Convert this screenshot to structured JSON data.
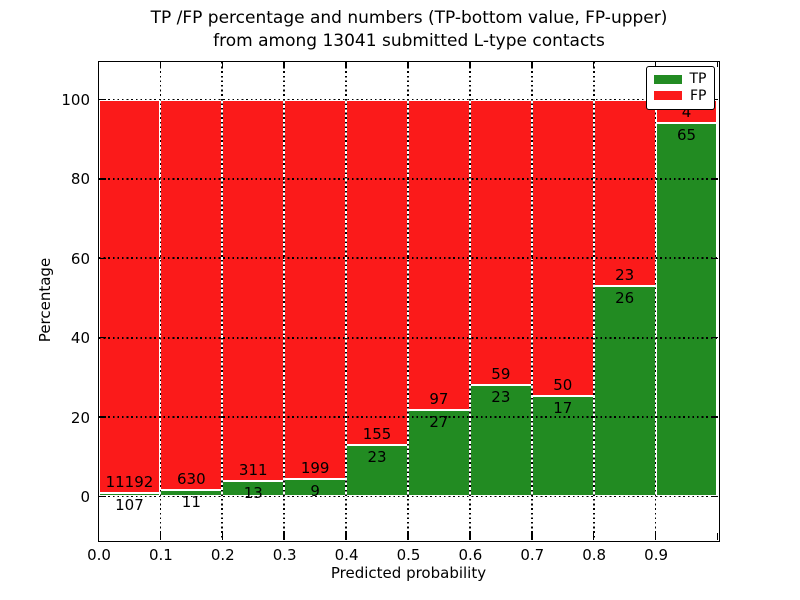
{
  "title": {
    "line1": "TP /FP percentage and numbers (TP-bottom value, FP-upper)",
    "line2": "from among 13041 submitted L-type contacts"
  },
  "axes": {
    "xlabel": "Predicted probability",
    "ylabel": "Percentage",
    "y_ticks": [
      "0",
      "20",
      "40",
      "60",
      "80",
      "100"
    ],
    "y_tick_values": [
      0,
      20,
      40,
      60,
      80,
      100
    ],
    "x_ticks": [
      "0.0",
      "0.1",
      "0.2",
      "0.3",
      "0.4",
      "0.5",
      "0.6",
      "0.7",
      "0.8",
      "0.9"
    ]
  },
  "legend": {
    "items": [
      {
        "label": "TP",
        "color": "#228b22"
      },
      {
        "label": "FP",
        "color": "#fb1a1a"
      }
    ]
  },
  "colors": {
    "tp": "#228b22",
    "fp": "#fb1a1a",
    "bar_edge": "#ffffff",
    "grid": "#000000",
    "text": "#000000",
    "background": "#ffffff"
  },
  "chart_data": {
    "type": "bar",
    "stacked": true,
    "title": "TP /FP percentage and numbers (TP-bottom value, FP-upper) from among 13041 submitted L-type contacts",
    "xlabel": "Predicted probability",
    "ylabel": "Percentage",
    "x_bins": [
      0.0,
      0.1,
      0.2,
      0.3,
      0.4,
      0.5,
      0.6,
      0.7,
      0.8,
      0.9
    ],
    "bin_width": 0.1,
    "xlim": [
      0.0,
      1.0
    ],
    "ylim": [
      -11,
      110
    ],
    "grid": "black dotted gridlines drawn on top of bars, vertical at each 0.1, horizontal at each 20%",
    "legend_position": "upper right",
    "series": [
      {
        "name": "TP",
        "counts": [
          107,
          11,
          13,
          9,
          23,
          27,
          23,
          17,
          26,
          65
        ]
      },
      {
        "name": "FP",
        "counts": [
          11192,
          630,
          311,
          199,
          155,
          97,
          59,
          50,
          23,
          4
        ]
      }
    ],
    "tp_percent": [
      0.95,
      1.72,
      4.01,
      4.33,
      12.92,
      21.77,
      28.05,
      25.37,
      53.06,
      94.2
    ],
    "fp_percent": [
      99.05,
      98.28,
      95.99,
      95.67,
      87.08,
      78.23,
      71.95,
      74.63,
      46.94,
      5.8
    ],
    "annotations": {
      "fp_labels": [
        "11192",
        "630",
        "311",
        "199",
        "155",
        "97",
        "59",
        "50",
        "23",
        "4"
      ],
      "tp_labels": [
        "107",
        "11",
        "13",
        "9",
        "23",
        "27",
        "23",
        "17",
        "26",
        "65"
      ],
      "fp_last_label_hidden_behind_legend": true
    },
    "total_contacts": 13041
  }
}
